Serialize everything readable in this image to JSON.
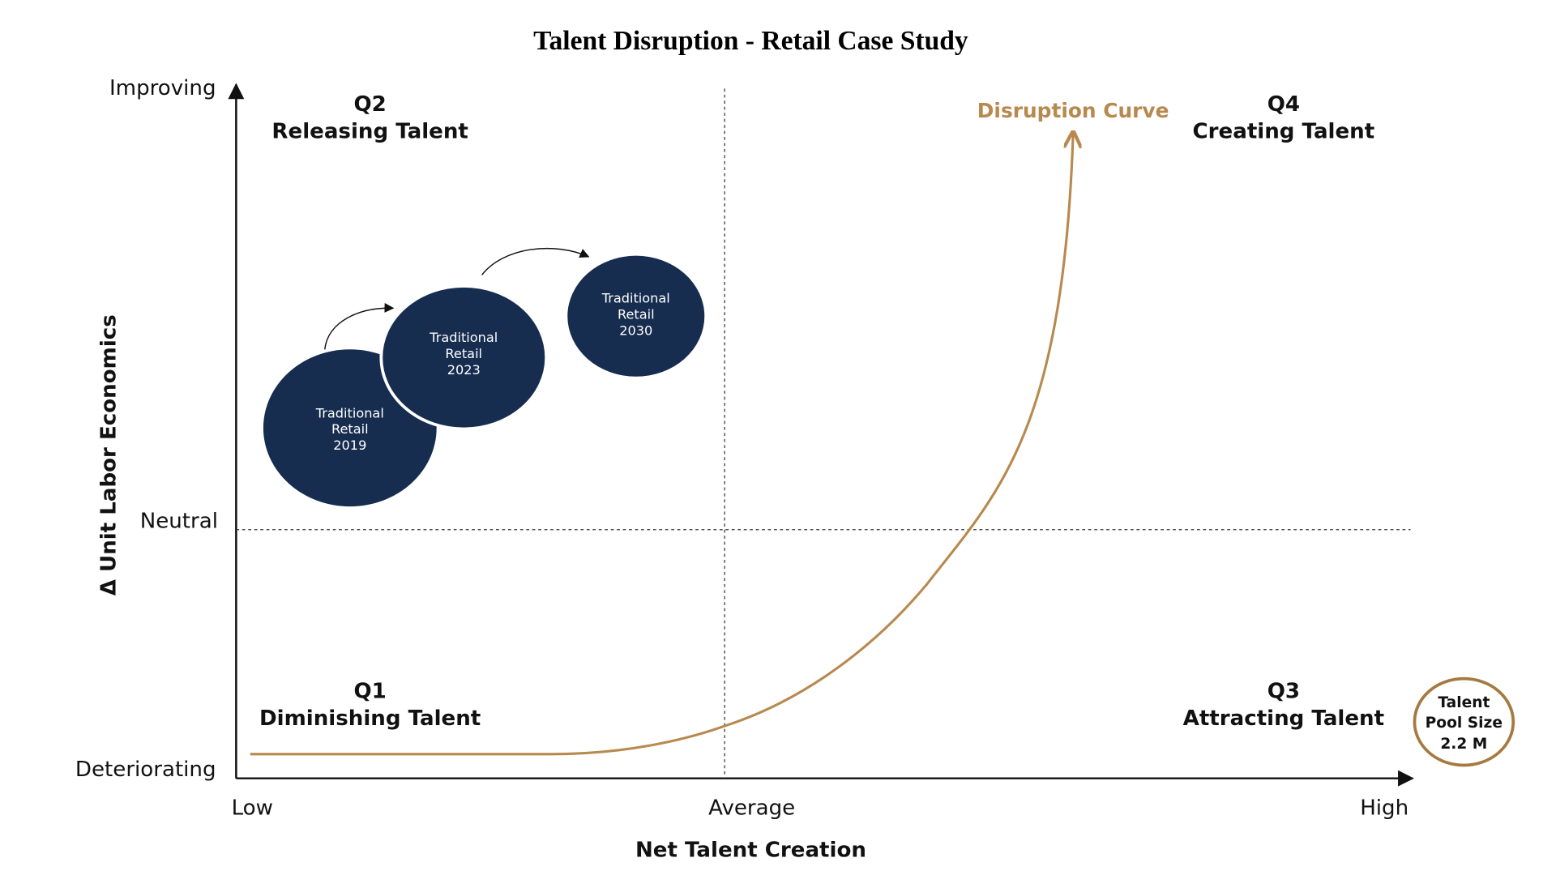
{
  "title": "Talent Disruption - Retail Case Study",
  "y_axis": {
    "title": "Δ Unit Labor Economics",
    "labels": [
      "Improving",
      "Neutral",
      "Deteriorating"
    ]
  },
  "x_axis": {
    "title": "Net Talent Creation",
    "labels": [
      "Low",
      "Average",
      "High"
    ]
  },
  "quadrants": [
    {
      "id": "Q2",
      "label": "Releasing Talent"
    },
    {
      "id": "Q4",
      "label": "Creating Talent"
    },
    {
      "id": "Q1",
      "label": "Diminishing Talent"
    },
    {
      "id": "Q3",
      "label": "Attracting Talent"
    }
  ],
  "curve_label": "Disruption Curve",
  "bubbles": [
    {
      "lines": [
        "Traditional",
        "Retail",
        "2019"
      ]
    },
    {
      "lines": [
        "Traditional",
        "Retail",
        "2023"
      ]
    },
    {
      "lines": [
        "Traditional",
        "Retail",
        "2030"
      ]
    }
  ],
  "badge": {
    "lines": [
      "Talent",
      "Pool Size",
      "2.2 M"
    ]
  }
}
